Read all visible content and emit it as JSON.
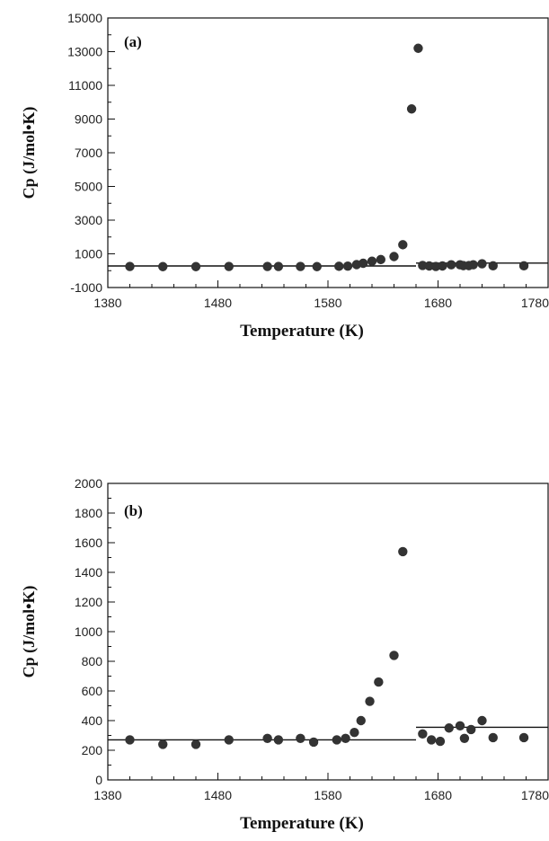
{
  "chart_data": [
    {
      "type": "scatter",
      "panel_label": "(a)",
      "xlabel": "Temperature (K)",
      "ylabel": "Cp  (J/mol•K)",
      "xlim": [
        1380,
        1780
      ],
      "ylim": [
        -1000,
        15000
      ],
      "xticks": [
        1380,
        1480,
        1580,
        1680,
        1780
      ],
      "xtick_labels": [
        "1380",
        "1480",
        "1580",
        "1680",
        "1780"
      ],
      "yticks": [
        -1000,
        1000,
        3000,
        5000,
        7000,
        9000,
        11000,
        13000,
        15000
      ],
      "ytick_labels": [
        "-1000",
        "1000",
        "3000",
        "5000",
        "7000",
        "9000",
        "11000",
        "13000",
        "15000"
      ],
      "points": [
        [
          1400,
          250
        ],
        [
          1430,
          240
        ],
        [
          1460,
          240
        ],
        [
          1490,
          250
        ],
        [
          1525,
          250
        ],
        [
          1535,
          250
        ],
        [
          1555,
          250
        ],
        [
          1570,
          240
        ],
        [
          1590,
          260
        ],
        [
          1598,
          270
        ],
        [
          1606,
          360
        ],
        [
          1612,
          440
        ],
        [
          1620,
          560
        ],
        [
          1628,
          660
        ],
        [
          1640,
          840
        ],
        [
          1648,
          1540
        ],
        [
          1656,
          9600
        ],
        [
          1662,
          13200
        ],
        [
          1666,
          310
        ],
        [
          1672,
          280
        ],
        [
          1678,
          250
        ],
        [
          1684,
          280
        ],
        [
          1692,
          350
        ],
        [
          1700,
          350
        ],
        [
          1703,
          300
        ],
        [
          1708,
          300
        ],
        [
          1712,
          350
        ],
        [
          1720,
          410
        ],
        [
          1730,
          290
        ],
        [
          1758,
          290
        ]
      ],
      "fit_lines": [
        {
          "x": [
            1380,
            1660
          ],
          "y": [
            280,
            280
          ]
        },
        {
          "x": [
            1660,
            1780
          ],
          "y": [
            450,
            450
          ]
        }
      ],
      "grid": false
    },
    {
      "type": "scatter",
      "panel_label": "(b)",
      "xlabel": "Temperature (K)",
      "ylabel": "Cp  (J/mol•K)",
      "xlim": [
        1380,
        1780
      ],
      "ylim": [
        0,
        2000
      ],
      "xticks": [
        1380,
        1480,
        1580,
        1680,
        1780
      ],
      "xtick_labels": [
        "1380",
        "1480",
        "1580",
        "1680",
        "1780"
      ],
      "yticks": [
        0,
        200,
        400,
        600,
        800,
        1000,
        1200,
        1400,
        1600,
        1800,
        2000
      ],
      "ytick_labels": [
        "0",
        "200",
        "400",
        "600",
        "800",
        "1000",
        "1200",
        "1400",
        "1600",
        "1800",
        "2000"
      ],
      "points": [
        [
          1400,
          270
        ],
        [
          1430,
          240
        ],
        [
          1460,
          240
        ],
        [
          1490,
          270
        ],
        [
          1525,
          280
        ],
        [
          1535,
          270
        ],
        [
          1555,
          280
        ],
        [
          1567,
          255
        ],
        [
          1588,
          270
        ],
        [
          1596,
          280
        ],
        [
          1604,
          320
        ],
        [
          1610,
          400
        ],
        [
          1618,
          530
        ],
        [
          1626,
          660
        ],
        [
          1640,
          840
        ],
        [
          1648,
          1540
        ],
        [
          1666,
          310
        ],
        [
          1674,
          270
        ],
        [
          1682,
          260
        ],
        [
          1690,
          350
        ],
        [
          1700,
          365
        ],
        [
          1704,
          280
        ],
        [
          1710,
          340
        ],
        [
          1720,
          400
        ],
        [
          1730,
          285
        ],
        [
          1758,
          285
        ]
      ],
      "fit_lines": [
        {
          "x": [
            1380,
            1660
          ],
          "y": [
            270,
            270
          ]
        },
        {
          "x": [
            1660,
            1780
          ],
          "y": [
            355,
            355
          ]
        }
      ],
      "grid": false
    }
  ]
}
